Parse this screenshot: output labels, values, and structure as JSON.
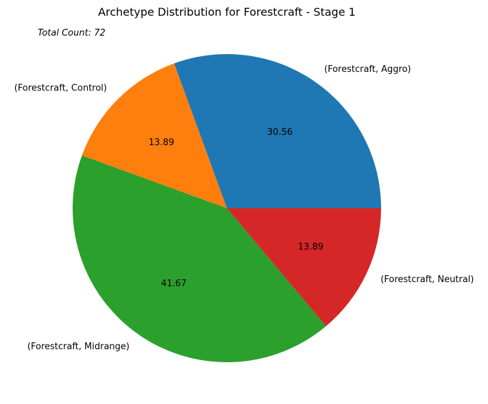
{
  "chart_data": {
    "type": "pie",
    "title": "Archetype Distribution for Forestcraft - Stage 1",
    "annotation": "Total Count: 72",
    "slices": [
      {
        "label": "(Forestcraft, Aggro)",
        "value": 30.56,
        "value_label": "30.56",
        "color": "#1f77b4"
      },
      {
        "label": "(Forestcraft, Control)",
        "value": 13.89,
        "value_label": "13.89",
        "color": "#ff7f0e"
      },
      {
        "label": "(Forestcraft, Midrange)",
        "value": 41.67,
        "value_label": "41.67",
        "color": "#2ca02c"
      },
      {
        "label": "(Forestcraft, Neutral)",
        "value": 13.89,
        "value_label": "13.89",
        "color": "#d62728"
      }
    ],
    "start_angle": "east",
    "direction": "counterclockwise",
    "legend": "none"
  }
}
